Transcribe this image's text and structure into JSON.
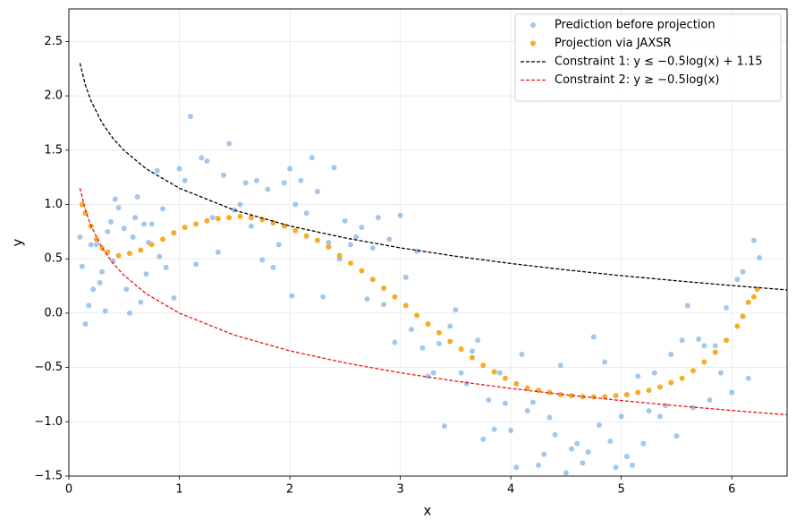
{
  "chart_data": {
    "type": "scatter",
    "x_label": "x",
    "y_label": "y",
    "xlim": [
      0,
      6.5
    ],
    "ylim": [
      -1.5,
      2.8
    ],
    "xticks": [
      0,
      1,
      2,
      3,
      4,
      5,
      6
    ],
    "yticks": [
      {
        "value": -1.5,
        "label": "−1.5"
      },
      {
        "value": -1.0,
        "label": "−1.0"
      },
      {
        "value": -0.5,
        "label": "−0.5"
      },
      {
        "value": 0,
        "label": "0.0"
      },
      {
        "value": 0.5,
        "label": "0.5"
      },
      {
        "value": 1.0,
        "label": "1.0"
      },
      {
        "value": 1.5,
        "label": "1.5"
      },
      {
        "value": 2.0,
        "label": "2.0"
      },
      {
        "value": 2.5,
        "label": "2.5"
      }
    ],
    "grid": true,
    "legend": "upper right",
    "series": [
      {
        "name": "Prediction before projection",
        "type": "scatter",
        "color": "#4a90d9",
        "opacity": 0.5,
        "x": [
          0.1,
          0.12,
          0.15,
          0.18,
          0.2,
          0.22,
          0.25,
          0.28,
          0.3,
          0.33,
          0.35,
          0.38,
          0.4,
          0.42,
          0.45,
          0.5,
          0.52,
          0.55,
          0.58,
          0.6,
          0.62,
          0.65,
          0.68,
          0.7,
          0.72,
          0.75,
          0.8,
          0.82,
          0.85,
          0.88,
          0.95,
          1.0,
          1.05,
          1.1,
          1.15,
          1.2,
          1.25,
          1.3,
          1.35,
          1.4,
          1.45,
          1.5,
          1.55,
          1.6,
          1.65,
          1.7,
          1.75,
          1.8,
          1.85,
          1.9,
          1.95,
          2.0,
          2.02,
          2.05,
          2.1,
          2.15,
          2.2,
          2.25,
          2.3,
          2.35,
          2.4,
          2.45,
          2.5,
          2.55,
          2.6,
          2.65,
          2.7,
          2.75,
          2.8,
          2.85,
          2.9,
          2.95,
          3.0,
          3.05,
          3.1,
          3.15,
          3.2,
          3.25,
          3.3,
          3.35,
          3.4,
          3.45,
          3.5,
          3.55,
          3.6,
          3.65,
          3.7,
          3.75,
          3.8,
          3.85,
          3.9,
          3.95,
          4.0,
          4.05,
          4.1,
          4.15,
          4.2,
          4.25,
          4.3,
          4.35,
          4.4,
          4.45,
          4.5,
          4.55,
          4.6,
          4.65,
          4.7,
          4.75,
          4.8,
          4.85,
          4.9,
          4.95,
          5.0,
          5.05,
          5.1,
          5.15,
          5.2,
          5.25,
          5.3,
          5.35,
          5.4,
          5.45,
          5.5,
          5.55,
          5.6,
          5.65,
          5.7,
          5.75,
          5.8,
          5.85,
          5.9,
          5.95,
          6.0,
          6.05,
          6.1,
          6.15,
          6.2,
          6.25
        ],
        "values": [
          0.7,
          0.43,
          -0.1,
          0.07,
          0.63,
          0.22,
          0.63,
          0.28,
          0.38,
          0.02,
          0.75,
          0.84,
          0.48,
          1.05,
          0.97,
          0.78,
          0.22,
          0.0,
          0.7,
          0.88,
          1.07,
          0.1,
          0.82,
          0.36,
          0.65,
          0.82,
          1.31,
          0.52,
          0.96,
          0.42,
          0.14,
          1.33,
          1.22,
          1.81,
          0.45,
          1.43,
          1.4,
          0.88,
          0.56,
          1.27,
          1.56,
          0.95,
          1.0,
          1.2,
          0.8,
          1.22,
          0.49,
          1.14,
          0.42,
          0.63,
          1.2,
          1.33,
          0.16,
          1.0,
          1.22,
          0.92,
          1.43,
          1.12,
          0.15,
          0.65,
          1.34,
          0.5,
          0.85,
          0.63,
          0.7,
          0.79,
          0.13,
          0.6,
          0.88,
          0.08,
          0.68,
          -0.27,
          0.9,
          0.33,
          -0.15,
          0.57,
          -0.32,
          -0.58,
          -0.55,
          -0.28,
          -1.04,
          -0.12,
          0.03,
          -0.55,
          -0.65,
          -0.35,
          -0.25,
          -1.16,
          -0.8,
          -1.07,
          -0.55,
          -0.83,
          -1.08,
          -1.42,
          -0.38,
          -0.9,
          -0.82,
          -1.4,
          -1.3,
          -0.96,
          -1.12,
          -0.48,
          -1.47,
          -1.25,
          -1.2,
          -1.38,
          -1.28,
          -0.22,
          -1.03,
          -0.45,
          -1.18,
          -1.42,
          -0.95,
          -1.32,
          -1.4,
          -0.58,
          -1.2,
          -0.9,
          -0.55,
          -0.95,
          -0.85,
          -0.38,
          -1.13,
          -0.25,
          0.07,
          -0.87,
          -0.24,
          -0.3,
          -0.8,
          -0.3,
          -0.55,
          0.05,
          -0.73,
          0.31,
          0.38,
          -0.6,
          0.67,
          0.51
        ]
      },
      {
        "name": "Projection via JAXSR",
        "type": "scatter",
        "color": "#f5a30f",
        "opacity": 0.9,
        "x": [
          0.12,
          0.15,
          0.2,
          0.25,
          0.3,
          0.35,
          0.45,
          0.55,
          0.65,
          0.75,
          0.85,
          0.95,
          1.05,
          1.15,
          1.25,
          1.35,
          1.45,
          1.55,
          1.65,
          1.75,
          1.85,
          1.95,
          2.05,
          2.15,
          2.25,
          2.35,
          2.45,
          2.55,
          2.65,
          2.75,
          2.85,
          2.95,
          3.05,
          3.15,
          3.25,
          3.35,
          3.45,
          3.55,
          3.65,
          3.75,
          3.85,
          3.95,
          4.05,
          4.15,
          4.25,
          4.35,
          4.45,
          4.55,
          4.65,
          4.75,
          4.85,
          4.95,
          5.05,
          5.15,
          5.25,
          5.35,
          5.45,
          5.55,
          5.65,
          5.75,
          5.85,
          5.95,
          6.05,
          6.1,
          6.15,
          6.2,
          6.23
        ],
        "values": [
          1.0,
          0.92,
          0.8,
          0.68,
          0.6,
          0.56,
          0.53,
          0.55,
          0.58,
          0.63,
          0.68,
          0.74,
          0.79,
          0.82,
          0.85,
          0.87,
          0.88,
          0.89,
          0.88,
          0.86,
          0.83,
          0.8,
          0.76,
          0.71,
          0.67,
          0.61,
          0.53,
          0.46,
          0.39,
          0.31,
          0.23,
          0.15,
          0.07,
          -0.02,
          -0.1,
          -0.18,
          -0.26,
          -0.33,
          -0.41,
          -0.48,
          -0.54,
          -0.6,
          -0.65,
          -0.69,
          -0.71,
          -0.73,
          -0.75,
          -0.76,
          -0.77,
          -0.77,
          -0.77,
          -0.76,
          -0.75,
          -0.73,
          -0.71,
          -0.68,
          -0.64,
          -0.6,
          -0.53,
          -0.45,
          -0.36,
          -0.25,
          -0.12,
          -0.03,
          0.1,
          0.15,
          0.22
        ]
      },
      {
        "name": "Constraint 1: y ≤ −0.5log(x) + 1.15",
        "type": "line",
        "color": "#000000",
        "dashed": true,
        "x": [
          0.1,
          0.15,
          0.2,
          0.3,
          0.4,
          0.5,
          0.7,
          1,
          1.5,
          2,
          2.5,
          3,
          3.5,
          4,
          4.5,
          5,
          5.5,
          6,
          6.5
        ],
        "values": [
          2.301,
          2.099,
          1.955,
          1.752,
          1.608,
          1.497,
          1.328,
          1.15,
          0.947,
          0.803,
          0.692,
          0.601,
          0.524,
          0.457,
          0.398,
          0.345,
          0.298,
          0.254,
          0.214
        ]
      },
      {
        "name": "Constraint 2: y ≥ −0.5log(x)",
        "type": "line",
        "color": "#e8141b",
        "dashed": true,
        "x": [
          0.1,
          0.15,
          0.2,
          0.3,
          0.4,
          0.5,
          0.7,
          1,
          1.5,
          2,
          2.5,
          3,
          3.5,
          4,
          4.5,
          5,
          5.5,
          6,
          6.5
        ],
        "values": [
          1.151,
          0.949,
          0.805,
          0.602,
          0.458,
          0.347,
          0.178,
          0,
          -0.203,
          -0.347,
          -0.458,
          -0.549,
          -0.626,
          -0.693,
          -0.752,
          -0.805,
          -0.852,
          -0.896,
          -0.936
        ]
      }
    ]
  }
}
